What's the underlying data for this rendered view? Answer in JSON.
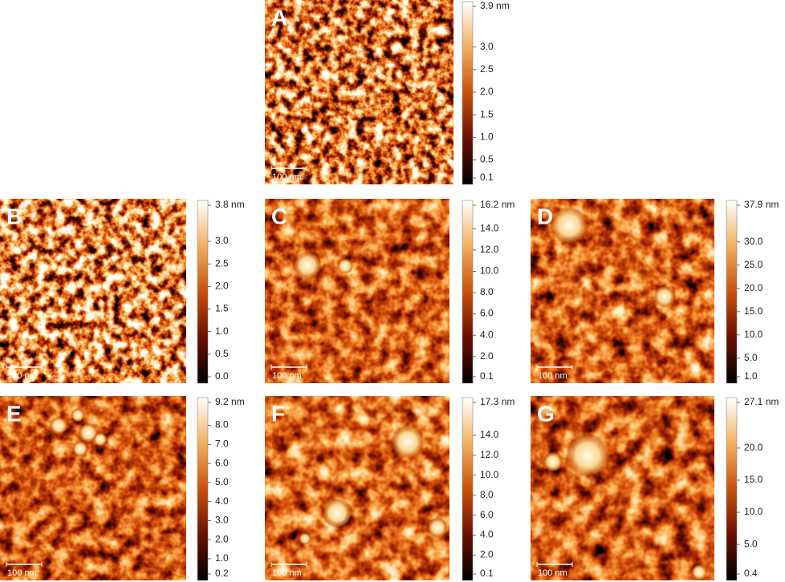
{
  "panels": [
    {
      "label": "A",
      "scale_bar": "100 nm",
      "colorbar": [
        "3.9 nm",
        "3.0",
        "2.5",
        "2.0",
        "1.5",
        "1.0",
        "0.5",
        "0.1"
      ]
    },
    {
      "label": "B",
      "scale_bar": "100 nm",
      "colorbar": [
        "3.8 nm",
        "3.0",
        "2.5",
        "2.0",
        "1.5",
        "1.0",
        "0.5",
        "0.0"
      ]
    },
    {
      "label": "C",
      "scale_bar": "100 nm",
      "colorbar": [
        "16.2 nm",
        "14.0",
        "12.0",
        "10.0",
        "8.0",
        "6.0",
        "4.0",
        "2.0",
        "0.1"
      ]
    },
    {
      "label": "D",
      "scale_bar": "100 nm",
      "colorbar": [
        "37.9 nm",
        "30.0",
        "25.0",
        "20.0",
        "15.0",
        "10.0",
        "5.0",
        "1.0"
      ]
    },
    {
      "label": "E",
      "scale_bar": "100 nm",
      "colorbar": [
        "9.2 nm",
        "8.0",
        "7.0",
        "6.0",
        "5.0",
        "4.0",
        "3.0",
        "2.0",
        "1.0",
        "0.2"
      ]
    },
    {
      "label": "F",
      "scale_bar": "100 nm",
      "colorbar": [
        "17.3 nm",
        "14.0",
        "12.0",
        "10.0",
        "8.0",
        "6.0",
        "4.0",
        "2.0",
        "0.1"
      ]
    },
    {
      "label": "G",
      "scale_bar": "100 nm",
      "colorbar": [
        "27.1 nm",
        "20.0",
        "15.0",
        "10.0",
        "5.0",
        "0.4"
      ]
    }
  ]
}
